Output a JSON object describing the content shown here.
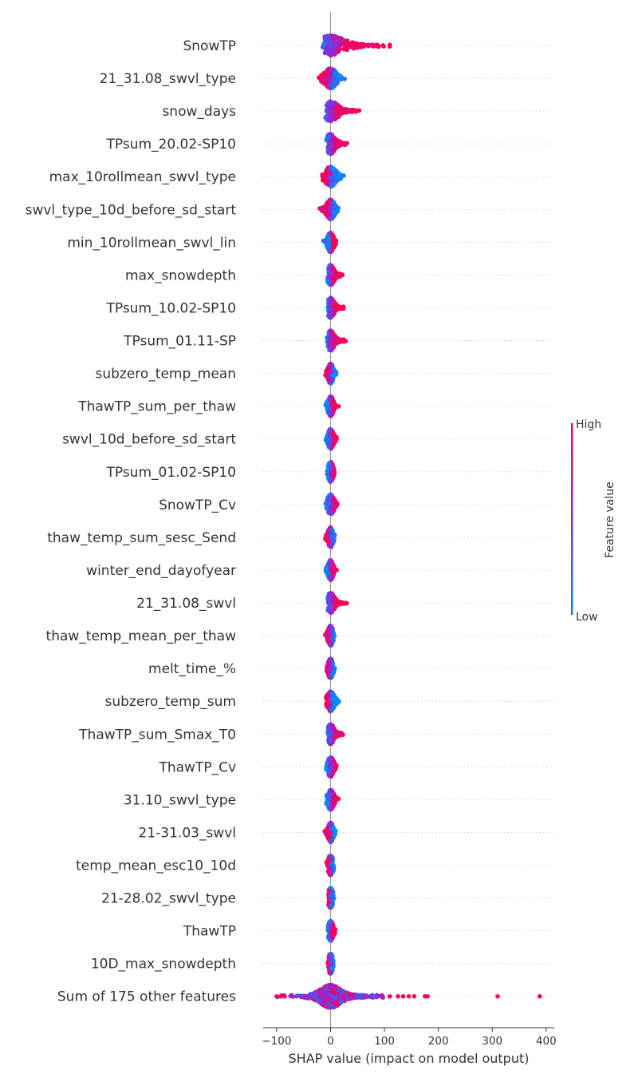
{
  "chart_data": {
    "type": "scatter",
    "subtype": "shap-beeswarm",
    "xlabel": "SHAP value (impact on model output)",
    "xlim": [
      -125,
      415
    ],
    "xticks": [
      -100,
      0,
      100,
      200,
      300,
      400
    ],
    "colorbar": {
      "title": "Feature value",
      "high_label": "High",
      "low_label": "Low",
      "low_color": "#008bfb",
      "high_color": "#ff0052"
    },
    "features": [
      {
        "name": "SnowTP",
        "min": -25,
        "max": 110,
        "mode": "right",
        "high_side": "right",
        "color_mid": 0.3
      },
      {
        "name": "21_31.08_swvl_type",
        "min": -25,
        "max": 32,
        "mode": "balanced",
        "high_side": "left",
        "color_mid": 0.5
      },
      {
        "name": "snow_days",
        "min": -18,
        "max": 55,
        "mode": "right",
        "high_side": "right",
        "color_mid": 0.5
      },
      {
        "name": "TPsum_20.02-SP10",
        "min": -15,
        "max": 32,
        "mode": "right",
        "high_side": "right",
        "color_mid": 0.5
      },
      {
        "name": "max_10rollmean_swvl_type",
        "min": -15,
        "max": 36,
        "mode": "balanced",
        "high_side": "left",
        "color_mid": 0.5
      },
      {
        "name": "swvl_type_10d_before_sd_start",
        "min": -25,
        "max": 15,
        "mode": "balanced",
        "high_side": "left",
        "color_mid": 0.5
      },
      {
        "name": "min_10rollmean_swvl_lin",
        "min": -15,
        "max": 12,
        "mode": "balanced",
        "high_side": "right",
        "color_mid": 0.5
      },
      {
        "name": "max_snowdepth",
        "min": -12,
        "max": 22,
        "mode": "right",
        "high_side": "right",
        "color_mid": 0.5
      },
      {
        "name": "TPsum_10.02-SP10",
        "min": -12,
        "max": 24,
        "mode": "right",
        "high_side": "right",
        "color_mid": 0.5
      },
      {
        "name": "TPsum_01.11-SP",
        "min": -8,
        "max": 28,
        "mode": "right",
        "high_side": "right",
        "color_mid": 0.5
      },
      {
        "name": "subzero_temp_mean",
        "min": -12,
        "max": 12,
        "mode": "balanced",
        "high_side": "left",
        "color_mid": 0.5
      },
      {
        "name": "ThawTP_sum_per_thaw",
        "min": -10,
        "max": 15,
        "mode": "balanced",
        "high_side": "right",
        "color_mid": 0.5
      },
      {
        "name": "swvl_10d_before_sd_start",
        "min": -10,
        "max": 18,
        "mode": "balanced",
        "high_side": "right",
        "color_mid": 0.5
      },
      {
        "name": "TPsum_01.02-SP10",
        "min": -8,
        "max": 12,
        "mode": "balanced",
        "high_side": "right",
        "color_mid": 0.5
      },
      {
        "name": "SnowTP_Cv",
        "min": -10,
        "max": 22,
        "mode": "balanced",
        "high_side": "right",
        "color_mid": 0.4
      },
      {
        "name": "thaw_temp_sum_sesc_Send",
        "min": -14,
        "max": 10,
        "mode": "balanced",
        "high_side": "left",
        "color_mid": 0.5
      },
      {
        "name": "winter_end_dayofyear",
        "min": -10,
        "max": 12,
        "mode": "balanced",
        "high_side": "right",
        "color_mid": 0.5
      },
      {
        "name": "21_31.08_swvl",
        "min": -5,
        "max": 32,
        "mode": "right",
        "high_side": "right",
        "color_mid": 0.5
      },
      {
        "name": "thaw_temp_mean_per_thaw",
        "min": -12,
        "max": 10,
        "mode": "balanced",
        "high_side": "left",
        "color_mid": 0.5
      },
      {
        "name": "melt_time_%",
        "min": -10,
        "max": 8,
        "mode": "balanced",
        "high_side": "left",
        "color_mid": 0.5
      },
      {
        "name": "subzero_temp_sum",
        "min": -8,
        "max": 25,
        "mode": "balanced",
        "high_side": "left",
        "color_mid": 0.5
      },
      {
        "name": "ThawTP_sum_Smax_T0",
        "min": -5,
        "max": 28,
        "mode": "right",
        "high_side": "right",
        "color_mid": 0.5
      },
      {
        "name": "ThawTP_Cv",
        "min": -8,
        "max": 20,
        "mode": "balanced",
        "high_side": "right",
        "color_mid": 0.5
      },
      {
        "name": "31.10_swvl_type",
        "min": -8,
        "max": 22,
        "mode": "balanced",
        "high_side": "right",
        "color_mid": 0.5
      },
      {
        "name": "21-31.03_swvl",
        "min": -12,
        "max": 12,
        "mode": "balanced",
        "high_side": "left",
        "color_mid": 0.5
      },
      {
        "name": "temp_mean_esc10_10d",
        "min": -8,
        "max": 8,
        "mode": "balanced",
        "high_side": "left",
        "color_mid": 0.5
      },
      {
        "name": "21-28.02_swvl_type",
        "min": -5,
        "max": 8,
        "mode": "balanced",
        "high_side": "left",
        "color_mid": 0.6
      },
      {
        "name": "ThawTP",
        "min": -5,
        "max": 15,
        "mode": "balanced",
        "high_side": "right",
        "color_mid": 0.5
      },
      {
        "name": "10D_max_snowdepth",
        "min": -5,
        "max": 8,
        "mode": "balanced",
        "high_side": "left",
        "color_mid": 0.5
      },
      {
        "name": "Sum of 175 other features",
        "min": -100,
        "max": 390,
        "mode": "wide",
        "high_side": "both",
        "color_mid": 0.6,
        "outliers": [
          -100,
          -92,
          -85,
          110,
          125,
          135,
          145,
          155,
          175,
          180,
          310,
          388
        ]
      }
    ]
  }
}
